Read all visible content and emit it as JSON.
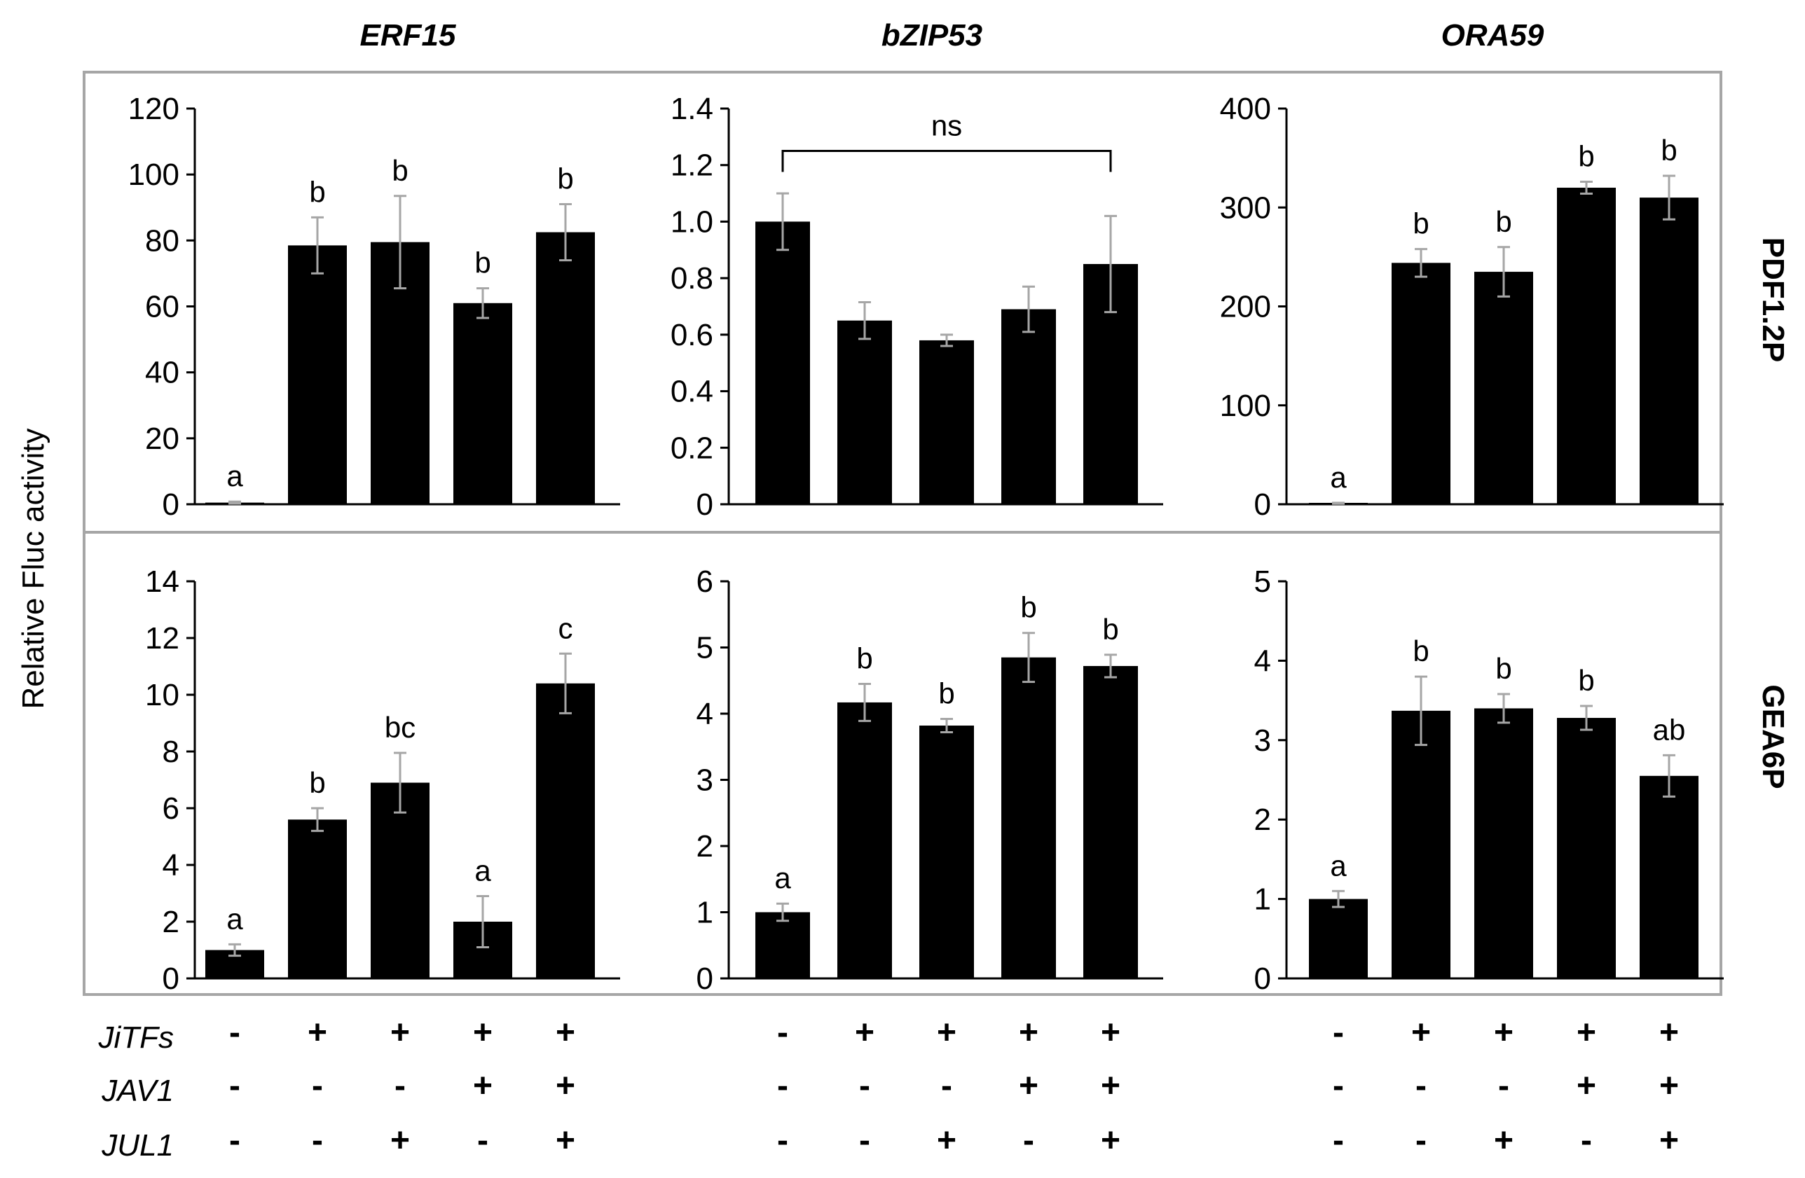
{
  "colors": {
    "bar": "#000000",
    "axis": "#000000",
    "error": "#a6a6a6",
    "frame": "#a6a6a6"
  },
  "chart_data": {
    "type": "bar",
    "ylabel": "Relative Fluc activity",
    "columns": [
      "ERF15",
      "bZIP53",
      "ORA59"
    ],
    "rows": [
      "PDF1.2P",
      "GEA6P"
    ],
    "conditions": [
      {
        "name": "JiTFs",
        "values": [
          "-",
          "+",
          "+",
          "+",
          "+"
        ]
      },
      {
        "name": "JAV1",
        "values": [
          "-",
          "-",
          "-",
          "+",
          "+"
        ]
      },
      {
        "name": "JUL1",
        "values": [
          "-",
          "-",
          "+",
          "-",
          "+"
        ]
      }
    ],
    "panels": [
      {
        "row": "PDF1.2P",
        "column": "ERF15",
        "ylim": [
          0,
          120
        ],
        "yticks": [
          "0",
          "20",
          "40",
          "60",
          "80",
          "100",
          "120"
        ],
        "ytickValues": [
          0,
          20,
          40,
          60,
          80,
          100,
          120
        ],
        "values": [
          0.5,
          78.5,
          79.5,
          61,
          82.5
        ],
        "errors": [
          0.3,
          8.5,
          14,
          4.5,
          8.5
        ],
        "letters": [
          "a",
          "b",
          "b",
          "b",
          "b"
        ]
      },
      {
        "row": "PDF1.2P",
        "column": "bZIP53",
        "ylim": [
          0,
          1.4
        ],
        "yticks": [
          "0",
          "0.2",
          "0.4",
          "0.6",
          "0.8",
          "1.0",
          "1.2",
          "1.4"
        ],
        "ytickValues": [
          0,
          0.2,
          0.4,
          0.6,
          0.8,
          1.0,
          1.2,
          1.4
        ],
        "values": [
          1.0,
          0.65,
          0.58,
          0.69,
          0.85
        ],
        "errors": [
          0.1,
          0.065,
          0.02,
          0.08,
          0.17
        ],
        "letters": [
          "",
          "",
          "",
          "",
          ""
        ],
        "bracket": "ns"
      },
      {
        "row": "PDF1.2P",
        "column": "ORA59",
        "ylim": [
          0,
          400
        ],
        "yticks": [
          "0",
          "100",
          "200",
          "300",
          "400"
        ],
        "ytickValues": [
          0,
          100,
          200,
          300,
          400
        ],
        "values": [
          1,
          244,
          235,
          320,
          310
        ],
        "errors": [
          0.5,
          14,
          25,
          6,
          22
        ],
        "letters": [
          "a",
          "b",
          "b",
          "b",
          "b"
        ]
      },
      {
        "row": "GEA6P",
        "column": "ERF15",
        "ylim": [
          0,
          14
        ],
        "yticks": [
          "0",
          "2",
          "4",
          "6",
          "8",
          "10",
          "12",
          "14"
        ],
        "ytickValues": [
          0,
          2,
          4,
          6,
          8,
          10,
          12,
          14
        ],
        "values": [
          1.0,
          5.6,
          6.9,
          2.0,
          10.4
        ],
        "errors": [
          0.2,
          0.4,
          1.05,
          0.9,
          1.05
        ],
        "letters": [
          "a",
          "b",
          "bc",
          "a",
          "c"
        ]
      },
      {
        "row": "GEA6P",
        "column": "bZIP53",
        "ylim": [
          0,
          6
        ],
        "yticks": [
          "0",
          "1",
          "2",
          "3",
          "4",
          "5",
          "6"
        ],
        "ytickValues": [
          0,
          1,
          2,
          3,
          4,
          5,
          6
        ],
        "values": [
          1.0,
          4.17,
          3.82,
          4.85,
          4.72
        ],
        "errors": [
          0.13,
          0.28,
          0.1,
          0.37,
          0.17
        ],
        "letters": [
          "a",
          "b",
          "b",
          "b",
          "b"
        ]
      },
      {
        "row": "GEA6P",
        "column": "ORA59",
        "ylim": [
          0,
          5
        ],
        "yticks": [
          "0",
          "1",
          "2",
          "3",
          "4",
          "5"
        ],
        "ytickValues": [
          0,
          1,
          2,
          3,
          4,
          5
        ],
        "values": [
          1.0,
          3.37,
          3.4,
          3.28,
          2.55
        ],
        "errors": [
          0.1,
          0.43,
          0.18,
          0.15,
          0.26
        ],
        "letters": [
          "a",
          "b",
          "b",
          "b",
          "ab"
        ]
      }
    ]
  }
}
